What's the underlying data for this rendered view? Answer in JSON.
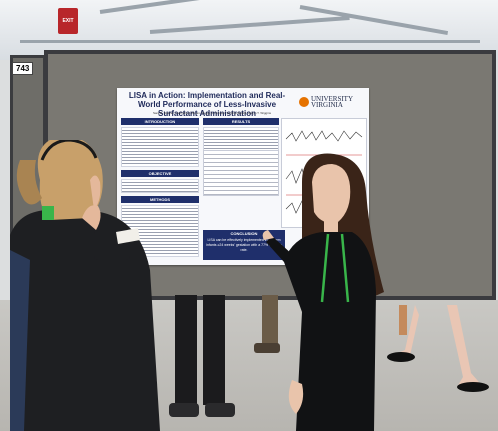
{
  "board": {
    "number": "743"
  },
  "exit_sign": "EXIT",
  "poster": {
    "title": "LISA in Action: Implementation and Real-World Performance of Less-Invasive Surfactant Administration",
    "authors": "Sara B. Mokrae, Gabrielle F. Bloom, Peggy A. Kinnear, Santina Zanelli, Jaclyn T. Wiggins",
    "institution_line1": "UNIVERSITY",
    "institution_line2": "VIRGINIA",
    "sections": {
      "introduction": "INTRODUCTION",
      "objective": "OBJECTIVE",
      "methods": "METHODS",
      "results": "RESULTS",
      "conclusion": "CONCLUSION"
    },
    "conclusion_text": "LISA can be effectively implemented in preterm infants ≥24 weeks' gestation with a 77% success rate."
  },
  "colors": {
    "poster_navy": "#1f2f6b",
    "uva_orange": "#e57200"
  }
}
